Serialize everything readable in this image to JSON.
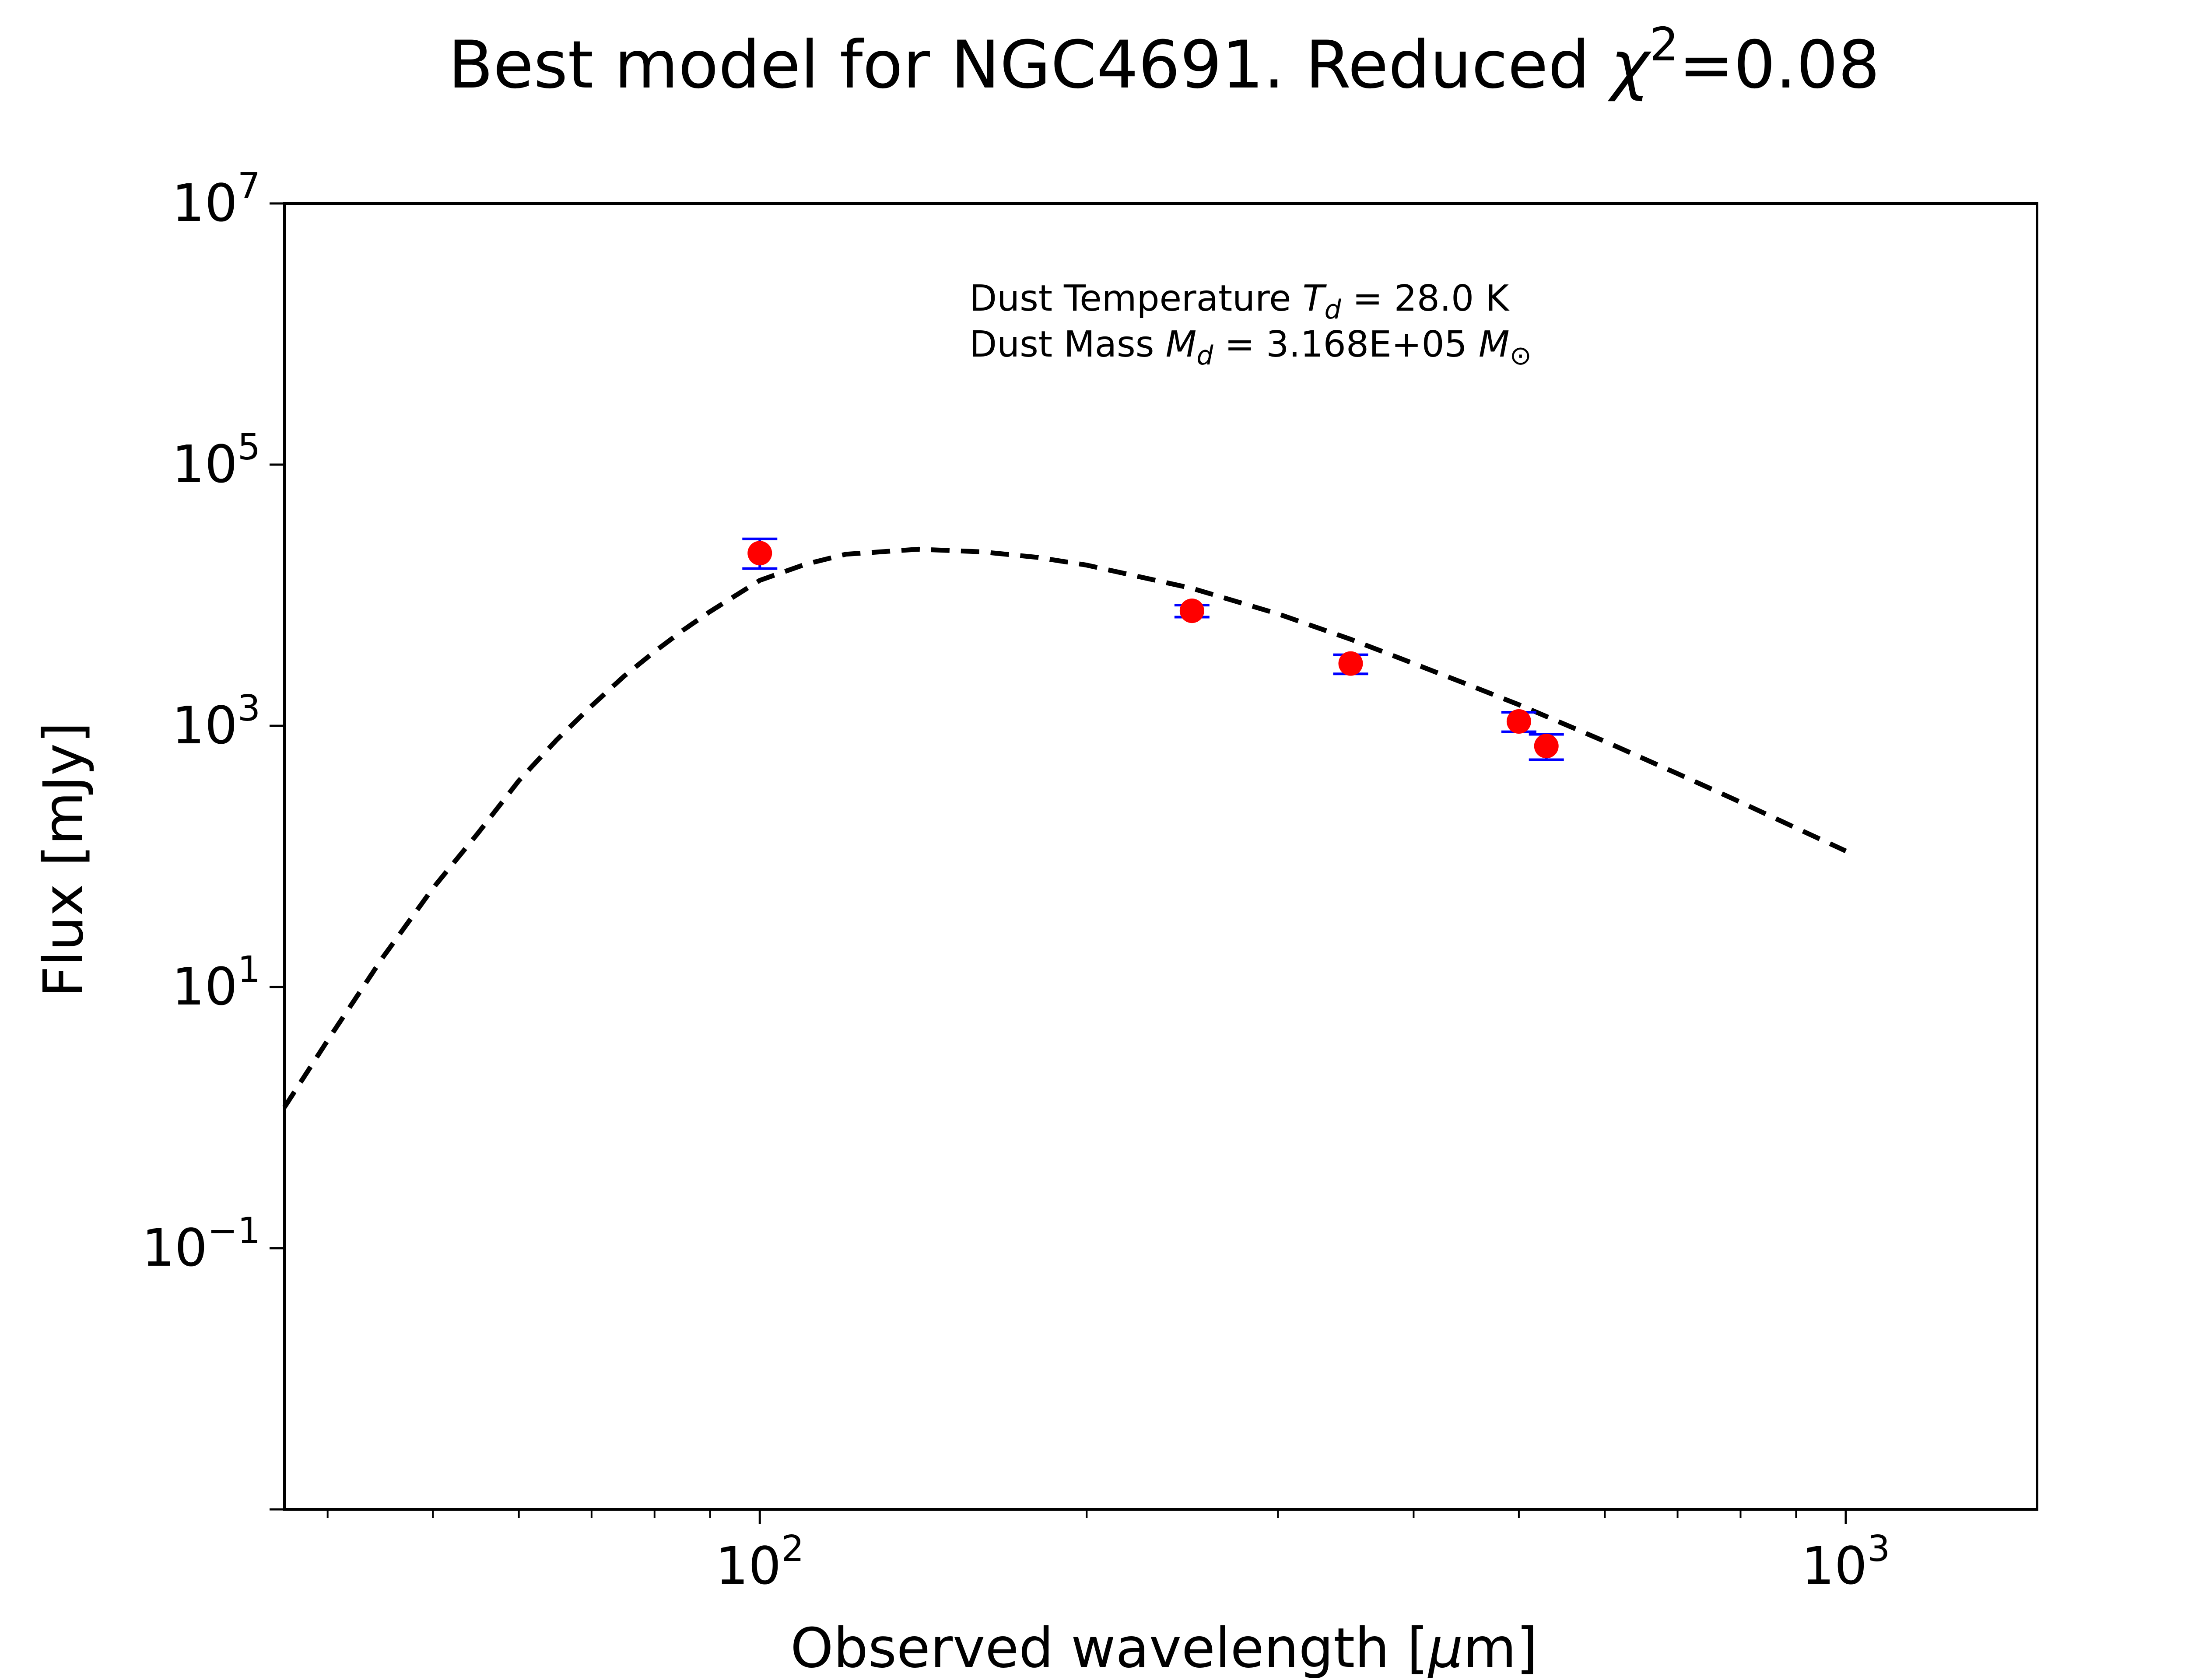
{
  "chart_data": {
    "type": "scatter",
    "title": {
      "prefix": "Best model for NGC4691. Reduced ",
      "symbol": "χ",
      "superscript": "2",
      "suffix": "=0.08"
    },
    "xlabel": {
      "prefix": "Observed wavelength [",
      "symbol": "μ",
      "suffix": "m]"
    },
    "ylabel": "Flux [mJy]",
    "x_scale": "log",
    "y_scale": "log",
    "xlim": [
      36.5,
      1500
    ],
    "ylim": [
      0.001,
      10000000
    ],
    "x_ticks": [
      {
        "value": 100,
        "base": "10",
        "exp": "2"
      },
      {
        "value": 1000,
        "base": "10",
        "exp": "3"
      }
    ],
    "y_ticks": [
      {
        "value": 0.1,
        "base": "10",
        "exp": "−1"
      },
      {
        "value": 10,
        "base": "10",
        "exp": "1"
      },
      {
        "value": 1000,
        "base": "10",
        "exp": "3"
      },
      {
        "value": 100000,
        "base": "10",
        "exp": "5"
      },
      {
        "value": 10000000,
        "base": "10",
        "exp": "7"
      }
    ],
    "grid": false,
    "annotation": {
      "line1": {
        "prefix": "Dust Temperature ",
        "symbol": "T",
        "sub": "d",
        "suffix": " = 28.0 K"
      },
      "line2": {
        "prefix": "Dust Mass ",
        "symbol": "M",
        "sub": "d",
        "middle": " = 3.168E+05 ",
        "symbol2": "M",
        "sub2": "⊙"
      }
    },
    "series": [
      {
        "style": "dashed",
        "color": "#000000",
        "x": [
          36.5,
          40,
          45,
          50,
          55,
          60,
          65,
          70,
          75,
          80,
          85,
          90,
          100,
          110,
          120,
          140,
          160,
          180,
          200,
          250,
          300,
          350,
          400,
          450,
          500,
          600,
          700,
          800,
          900,
          1000
        ],
        "y": [
          1.2,
          3.9,
          17,
          57,
          150,
          380,
          780,
          1420,
          2400,
          3700,
          5400,
          7500,
          13000,
          17200,
          20600,
          22500,
          21500,
          19500,
          17000,
          11300,
          7200,
          4600,
          3000,
          2050,
          1450,
          760,
          430,
          260,
          165,
          110
        ]
      },
      {
        "style": "points",
        "color": "#ff0000",
        "error_color": "#0000ff",
        "x": [
          100,
          250,
          350,
          500,
          530
        ],
        "y": [
          21000,
          7600,
          3000,
          1080,
          700
        ],
        "yerr": [
          [
            16000,
            27000
          ],
          [
            6800,
            8400
          ],
          [
            2500,
            3500
          ],
          [
            900,
            1270
          ],
          [
            550,
            860
          ]
        ]
      }
    ]
  }
}
